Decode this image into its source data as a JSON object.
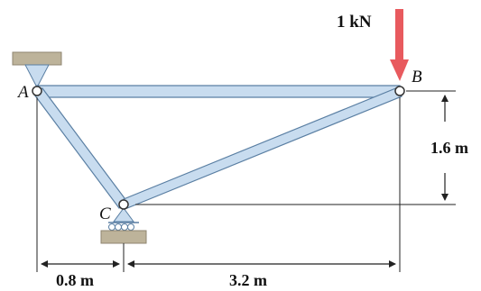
{
  "labels": {
    "load": "1 kN",
    "node_a": "A",
    "node_b": "B",
    "node_c": "C",
    "dim_height": "1.6 m",
    "dim_left": "0.8 m",
    "dim_right": "3.2 m"
  },
  "colors": {
    "member_fill": "#c8dcef",
    "member_stroke": "#5a7fa3",
    "support_fill": "#bdb39a",
    "load_arrow": "#e85a5e",
    "dimension": "#222222"
  }
}
